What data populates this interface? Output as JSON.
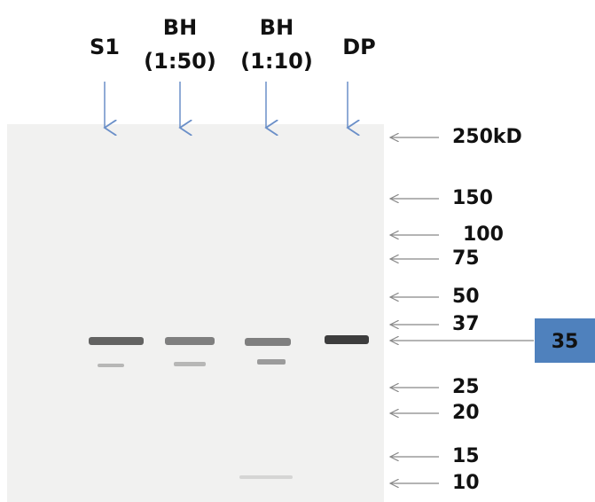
{
  "lanes": [
    {
      "lines": [
        "S1"
      ]
    },
    {
      "lines": [
        "BH",
        "(1:50)"
      ]
    },
    {
      "lines": [
        "BH",
        "(1:10)"
      ]
    },
    {
      "lines": [
        "DP"
      ]
    }
  ],
  "markers": [
    "250kD",
    "150",
    "100",
    "75",
    "50",
    "37",
    "25",
    "20",
    "15",
    "10"
  ],
  "highlight": "35"
}
